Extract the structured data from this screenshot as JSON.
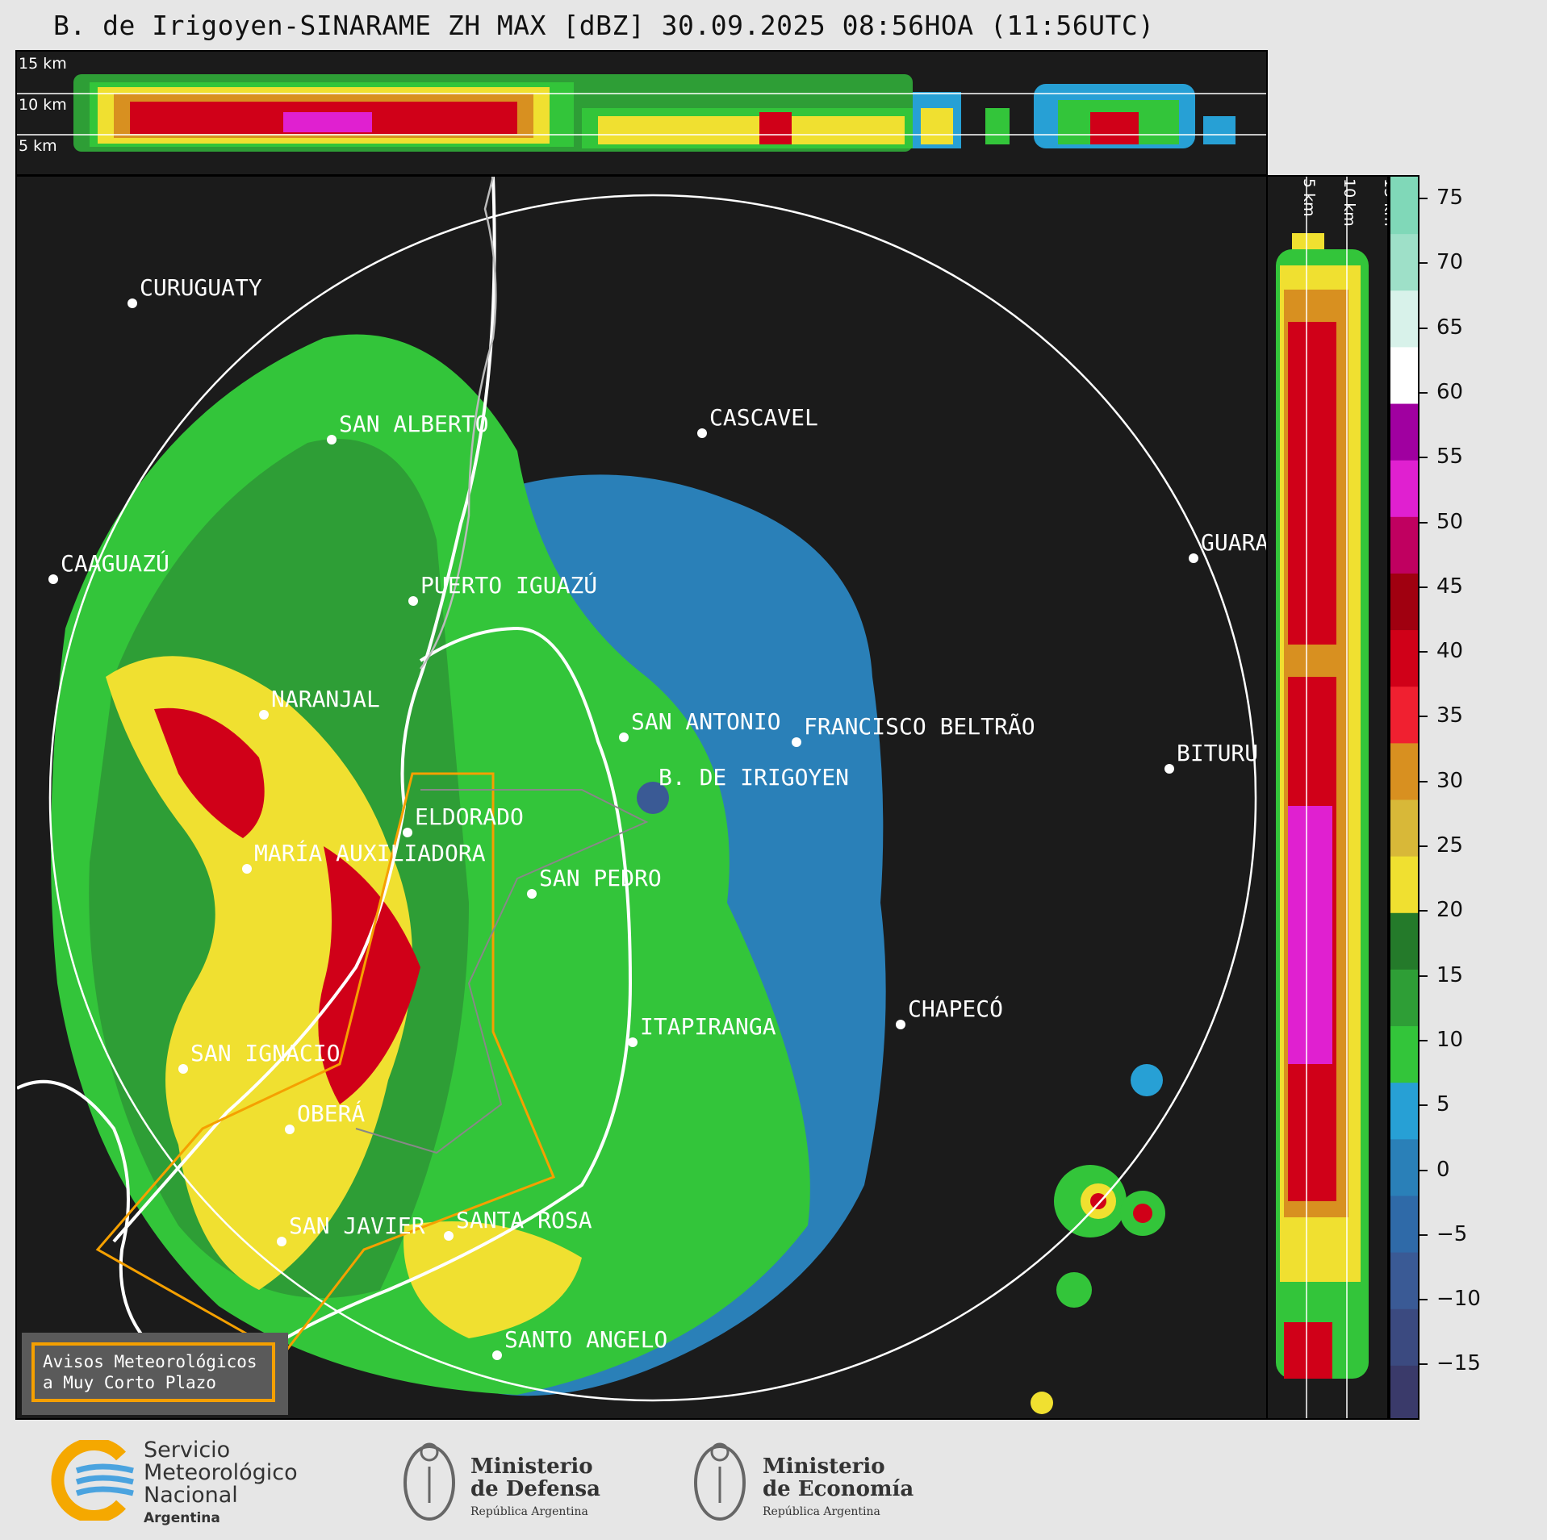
{
  "title": "B. de Irigoyen-SINARAME ZH MAX [dBZ] 30.09.2025 08:56HOA (11:56UTC)",
  "height_labels": [
    "15 km",
    "10 km",
    "5 km"
  ],
  "cities": [
    {
      "name": "CURUGUATY"
    },
    {
      "name": "SAN ALBERTO"
    },
    {
      "name": "CASCAVEL"
    },
    {
      "name": "CAAGUAZÚ"
    },
    {
      "name": "PUERTO IGUAZÚ"
    },
    {
      "name": "GUARA"
    },
    {
      "name": "NARANJAL"
    },
    {
      "name": "SAN ANTONIO"
    },
    {
      "name": "FRANCISCO BELTRÃO"
    },
    {
      "name": "BITURU"
    },
    {
      "name": "B. DE IRIGOYEN"
    },
    {
      "name": "ELDORADO"
    },
    {
      "name": "MARÍA AUXILIADORA"
    },
    {
      "name": "SAN PEDRO"
    },
    {
      "name": "CHAPECÓ"
    },
    {
      "name": "ITAPIRANGA"
    },
    {
      "name": "SAN IGNACIO"
    },
    {
      "name": "OBERÁ"
    },
    {
      "name": "SAN JAVIER"
    },
    {
      "name": "SANTA ROSA"
    },
    {
      "name": "SANTO ANGELO"
    }
  ],
  "colorbar": {
    "unit": "dBZ",
    "ticks": [
      "75",
      "70",
      "65",
      "60",
      "55",
      "50",
      "45",
      "40",
      "35",
      "30",
      "25",
      "20",
      "15",
      "10",
      "5",
      "0",
      "−5",
      "−10",
      "−15"
    ],
    "colors": [
      "#3a3a6a",
      "#3b4a80",
      "#3a5a95",
      "#2f6aa8",
      "#2a80b8",
      "#27a0d5",
      "#33c53a",
      "#2e9e36",
      "#247a2a",
      "#f0e030",
      "#d8b838",
      "#d89020",
      "#f02030",
      "#d00018",
      "#a00010",
      "#c00060",
      "#e020d0",
      "#a000a0",
      "#ffffff",
      "#d8f2ea",
      "#9ee0c8",
      "#80d8b8"
    ]
  },
  "legend": {
    "line1": "Avisos Meteorológicos",
    "line2": "a Muy Corto Plazo"
  },
  "logos": {
    "smn_line1": "Servicio",
    "smn_line2": "Meteorológico",
    "smn_line3": "Nacional",
    "smn_line4": "Argentina",
    "defensa_line1": "Ministerio",
    "defensa_line2": "de Defensa",
    "defensa_line3": "República Argentina",
    "economia_line1": "Ministerio",
    "economia_line2": "de Economía",
    "economia_line3": "República Argentina"
  }
}
